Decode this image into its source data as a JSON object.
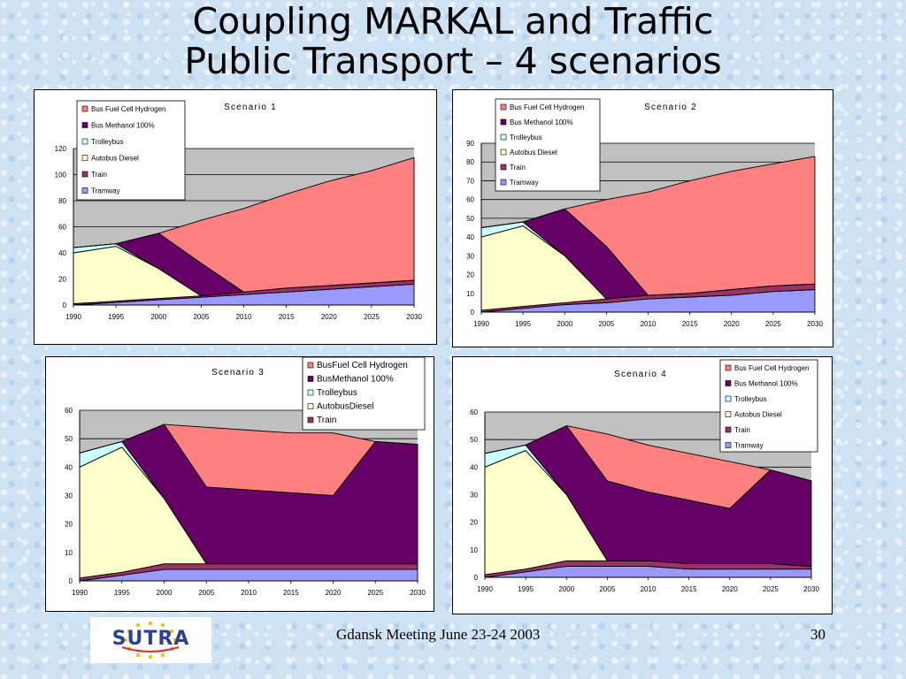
{
  "slide": {
    "title_line1": "Coupling MARKAL and Traffic",
    "title_line2": "Public Transport – 4 scenarios",
    "footer": "Gdansk Meeting June 23-24 2003",
    "page_number": "30",
    "logo_text": "SUTRA"
  },
  "colors": {
    "Train": "#993366",
    "Tramway": "#9999ff",
    "Autobus Diesel": "#ffffcc",
    "Trolleybus": "#ccffff",
    "Bus Methanol 100%": "#660066",
    "Bus Fuel Cell Hydrogen": "#ff8080",
    "plot_bg": "#c0c0c0"
  },
  "chart_data": [
    {
      "type": "area",
      "title": "Scenario 1",
      "x": [
        1990,
        1995,
        2000,
        2005,
        2010,
        2015,
        2020,
        2025,
        2030
      ],
      "ylim": [
        0,
        120
      ],
      "yticks": [
        0,
        20,
        40,
        60,
        80,
        100,
        120
      ],
      "grid": true,
      "legend_position": "top-left",
      "legend": [
        "Bus Fuel Cell Hydrogen",
        "Bus Methanol 100%",
        "Trolleybus",
        "Autobus Diesel",
        "Train",
        "Tramway"
      ],
      "series": [
        {
          "name": "Tramway",
          "values": [
            0,
            2,
            4,
            6,
            8,
            10,
            12,
            14,
            16
          ]
        },
        {
          "name": "Train",
          "values": [
            1,
            1,
            1,
            1,
            2,
            3,
            3,
            3,
            3
          ]
        },
        {
          "name": "Autobus Diesel",
          "values": [
            39,
            42,
            23,
            0,
            0,
            0,
            0,
            0,
            0
          ]
        },
        {
          "name": "Trolleybus",
          "values": [
            4,
            2,
            0,
            0,
            0,
            0,
            0,
            0,
            0
          ]
        },
        {
          "name": "Bus Methanol 100%",
          "values": [
            0,
            0,
            27,
            25,
            0,
            0,
            0,
            0,
            0
          ]
        },
        {
          "name": "Bus Fuel Cell Hydrogen",
          "values": [
            0,
            0,
            0,
            33,
            64,
            72,
            80,
            86,
            94
          ]
        }
      ]
    },
    {
      "type": "area",
      "title": "Scenario 2",
      "x": [
        1990,
        1995,
        2000,
        2005,
        2010,
        2015,
        2020,
        2025,
        2030
      ],
      "ylim": [
        0,
        90
      ],
      "yticks": [
        0,
        10,
        20,
        30,
        40,
        50,
        60,
        70,
        80,
        90
      ],
      "grid": true,
      "legend_position": "top-left",
      "legend": [
        "Bus Fuel Cell Hydrogen",
        "Bus Methanol 100%",
        "Trolleybus",
        "Autobus Diesel",
        "Train",
        "Tramway"
      ],
      "series": [
        {
          "name": "Tramway",
          "values": [
            0,
            2,
            4,
            5,
            7,
            8,
            9,
            11,
            12
          ]
        },
        {
          "name": "Train",
          "values": [
            1,
            1,
            1,
            2,
            2,
            2,
            3,
            3,
            3
          ]
        },
        {
          "name": "Autobus Diesel",
          "values": [
            39,
            43,
            25,
            0,
            0,
            0,
            0,
            0,
            0
          ]
        },
        {
          "name": "Trolleybus",
          "values": [
            5,
            2,
            0,
            0,
            0,
            0,
            0,
            0,
            0
          ]
        },
        {
          "name": "Bus Methanol 100%",
          "values": [
            0,
            0,
            25,
            28,
            0,
            0,
            0,
            0,
            0
          ]
        },
        {
          "name": "Bus Fuel Cell Hydrogen",
          "values": [
            0,
            0,
            0,
            25,
            55,
            60,
            63,
            65,
            68
          ]
        }
      ]
    },
    {
      "type": "area",
      "title": "Scenario 3",
      "x": [
        1990,
        1995,
        2000,
        2005,
        2010,
        2015,
        2020,
        2025,
        2030
      ],
      "ylim": [
        0,
        60
      ],
      "yticks": [
        0,
        10,
        20,
        30,
        40,
        50,
        60
      ],
      "grid": true,
      "legend_position": "top-right",
      "legend": [
        "BusFuel Cell Hydrogen",
        "BusMethanol 100%",
        "Trolleybus",
        "AutobusDiesel",
        "Train"
      ],
      "series": [
        {
          "name": "Tramway",
          "values": [
            0,
            2,
            4,
            4,
            4,
            4,
            4,
            4,
            4
          ]
        },
        {
          "name": "Train",
          "values": [
            1,
            1,
            2,
            2,
            2,
            2,
            2,
            2,
            2
          ]
        },
        {
          "name": "Autobus Diesel",
          "values": [
            39,
            44,
            23,
            0,
            0,
            0,
            0,
            0,
            0
          ]
        },
        {
          "name": "Trolleybus",
          "values": [
            5,
            2,
            0,
            0,
            0,
            0,
            0,
            0,
            0
          ]
        },
        {
          "name": "Bus Methanol 100%",
          "values": [
            0,
            0,
            26,
            27,
            26,
            25,
            24,
            43,
            42
          ]
        },
        {
          "name": "Bus Fuel Cell Hydrogen",
          "values": [
            0,
            0,
            0,
            21,
            21,
            21,
            22,
            0,
            0
          ]
        }
      ]
    },
    {
      "type": "area",
      "title": "Scenario 4",
      "x": [
        1990,
        1995,
        2000,
        2005,
        2010,
        2015,
        2020,
        2025,
        2030
      ],
      "ylim": [
        0,
        60
      ],
      "yticks": [
        0,
        10,
        20,
        30,
        40,
        50,
        60
      ],
      "grid": true,
      "legend_position": "top-right",
      "legend": [
        "Bus Fuel Cell Hydrogen",
        "Bus Methanol 100%",
        "Trolleybus",
        "Autobus Diesel",
        "Train",
        "Tramway"
      ],
      "series": [
        {
          "name": "Tramway",
          "values": [
            0,
            2,
            4,
            4,
            4,
            3,
            3,
            3,
            3
          ]
        },
        {
          "name": "Train",
          "values": [
            1,
            1,
            2,
            2,
            2,
            2,
            2,
            2,
            1
          ]
        },
        {
          "name": "Autobus Diesel",
          "values": [
            39,
            43,
            24,
            0,
            0,
            0,
            0,
            0,
            0
          ]
        },
        {
          "name": "Trolleybus",
          "values": [
            5,
            2,
            0,
            0,
            0,
            0,
            0,
            0,
            0
          ]
        },
        {
          "name": "Bus Methanol 100%",
          "values": [
            0,
            0,
            25,
            29,
            25,
            23,
            20,
            34,
            31
          ]
        },
        {
          "name": "Bus Fuel Cell Hydrogen",
          "values": [
            0,
            0,
            0,
            17,
            17,
            17,
            17,
            0,
            0
          ]
        }
      ]
    }
  ]
}
